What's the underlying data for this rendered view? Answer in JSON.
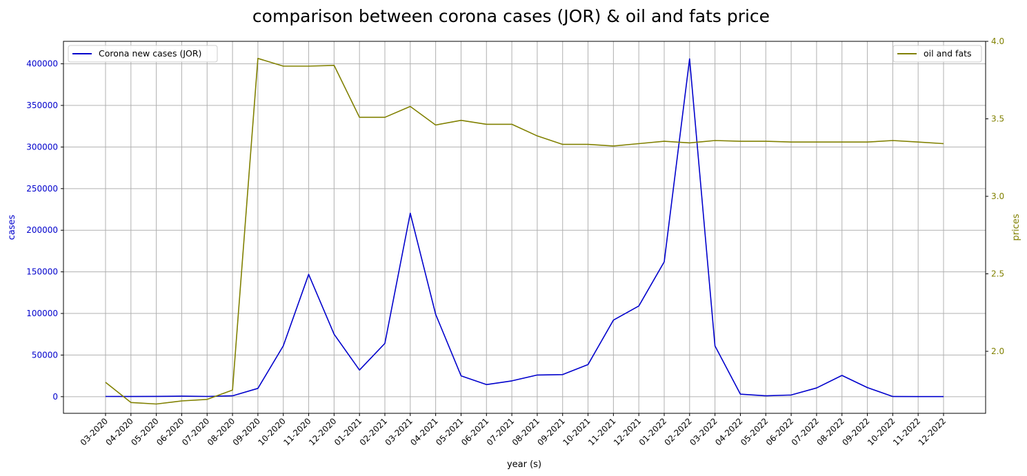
{
  "chart_data": {
    "type": "line",
    "title": "comparison between corona cases (JOR) & oil and fats price",
    "xlabel": "year (s)",
    "categories": [
      "03-2020",
      "04-2020",
      "05-2020",
      "06-2020",
      "07-2020",
      "08-2020",
      "09-2020",
      "10-2020",
      "11-2020",
      "12-2020",
      "01-2021",
      "02-2021",
      "03-2021",
      "04-2021",
      "05-2021",
      "06-2021",
      "07-2021",
      "08-2021",
      "09-2021",
      "10-2021",
      "11-2021",
      "12-2021",
      "01-2022",
      "02-2022",
      "03-2022",
      "04-2022",
      "05-2022",
      "06-2022",
      "07-2022",
      "08-2022",
      "09-2022",
      "10-2022",
      "11-2022",
      "12-2022"
    ],
    "left_axis": {
      "label": "cases",
      "color": "#0000cc",
      "ylim": [
        -20000,
        427000
      ],
      "ticks": [
        0,
        50000,
        100000,
        150000,
        200000,
        250000,
        300000,
        350000,
        400000
      ]
    },
    "right_axis": {
      "label": "prices",
      "color": "#808000",
      "ylim": [
        1.6,
        4.0
      ],
      "ticks": [
        2.0,
        2.5,
        3.0,
        3.5,
        4.0
      ]
    },
    "grid": true,
    "series": [
      {
        "name": "Corona new cases (JOR)",
        "axis": "left",
        "color": "#0000cc",
        "legend_position": "upper-left",
        "values": [
          300,
          200,
          400,
          600,
          300,
          1000,
          10000,
          61000,
          147000,
          75000,
          32000,
          64000,
          220500,
          99000,
          25000,
          14500,
          19000,
          26000,
          26500,
          38500,
          92000,
          109000,
          162000,
          406000,
          61000,
          3000,
          1000,
          2000,
          10500,
          25500,
          11000,
          200,
          100,
          100
        ]
      },
      {
        "name": "oil and fats",
        "axis": "right",
        "color": "#808000",
        "legend_position": "upper-right",
        "values": [
          1.8,
          1.67,
          1.66,
          1.68,
          1.69,
          1.75,
          3.89,
          3.84,
          3.84,
          3.845,
          3.51,
          3.51,
          3.58,
          3.46,
          3.49,
          3.465,
          3.465,
          3.39,
          3.335,
          3.335,
          3.325,
          3.34,
          3.355,
          3.345,
          3.36,
          3.355,
          3.355,
          3.35,
          3.35,
          3.35,
          3.35,
          3.36,
          3.35,
          3.34
        ]
      }
    ]
  }
}
